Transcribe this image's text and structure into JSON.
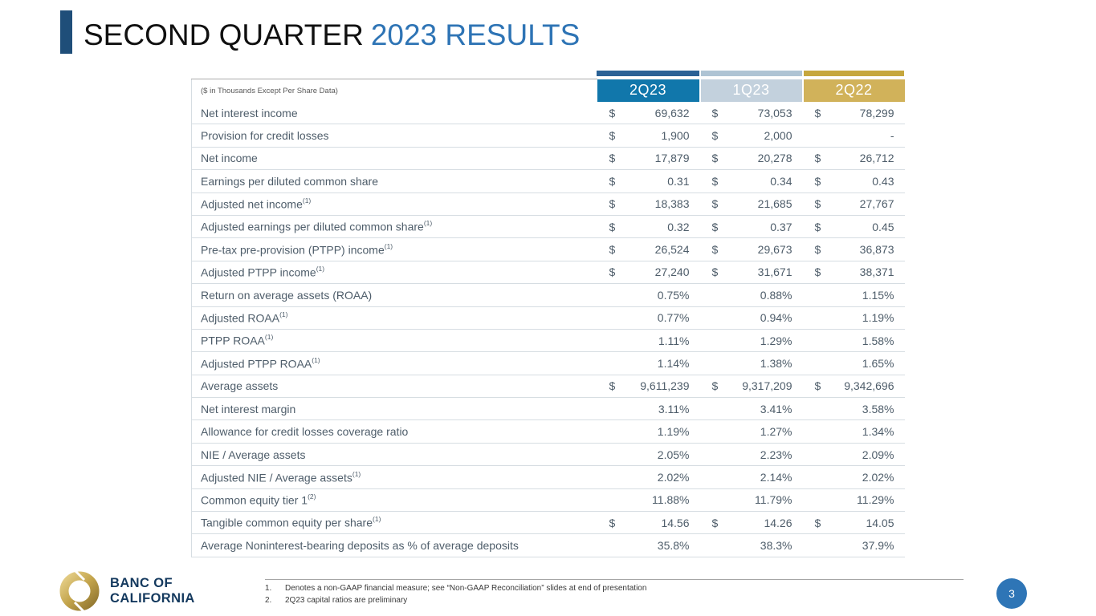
{
  "slide": {
    "title_black": "SECOND QUARTER",
    "title_blue": "2023 RESULTS",
    "page_number": "3"
  },
  "colors": {
    "accent_bar": "#1F4E79",
    "title_blue": "#2E74B5",
    "header_2q23": "#1177AB",
    "header_1q23": "#C3D1DD",
    "header_2q22": "#D1B25A",
    "stripe_2q23": "#2B6296",
    "stripe_1q23": "#AFC4D4",
    "stripe_2q22": "#C6A73E",
    "table_text": "#4E5D6A",
    "page_badge": "#2E75B6",
    "logo_navy": "#14395E",
    "logo_gold": "#C3A44C"
  },
  "table": {
    "caption": "($ in Thousands Except Per Share Data)",
    "columns": [
      "2Q23",
      "1Q23",
      "2Q22"
    ],
    "rows": [
      {
        "label": "Net interest income",
        "sup": "",
        "cells": [
          [
            "$",
            "69,632"
          ],
          [
            "$",
            "73,053"
          ],
          [
            "$",
            "78,299"
          ]
        ]
      },
      {
        "label": "Provision for credit losses",
        "sup": "",
        "cells": [
          [
            "$",
            "1,900"
          ],
          [
            "$",
            "2,000"
          ],
          [
            "",
            "-"
          ]
        ]
      },
      {
        "label": "Net income",
        "sup": "",
        "cells": [
          [
            "$",
            "17,879"
          ],
          [
            "$",
            "20,278"
          ],
          [
            "$",
            "26,712"
          ]
        ]
      },
      {
        "label": "Earnings per diluted common share",
        "sup": "",
        "cells": [
          [
            "$",
            "0.31"
          ],
          [
            "$",
            "0.34"
          ],
          [
            "$",
            "0.43"
          ]
        ]
      },
      {
        "label": "Adjusted net income",
        "sup": "(1)",
        "cells": [
          [
            "$",
            "18,383"
          ],
          [
            "$",
            "21,685"
          ],
          [
            "$",
            "27,767"
          ]
        ]
      },
      {
        "label": "Adjusted earnings per diluted common share",
        "sup": "(1)",
        "cells": [
          [
            "$",
            "0.32"
          ],
          [
            "$",
            "0.37"
          ],
          [
            "$",
            "0.45"
          ]
        ]
      },
      {
        "label": "Pre-tax pre-provision (PTPP) income",
        "sup": "(1)",
        "cells": [
          [
            "$",
            "26,524"
          ],
          [
            "$",
            "29,673"
          ],
          [
            "$",
            "36,873"
          ]
        ]
      },
      {
        "label": "Adjusted PTPP income",
        "sup": "(1)",
        "cells": [
          [
            "$",
            "27,240"
          ],
          [
            "$",
            "31,671"
          ],
          [
            "$",
            "38,371"
          ]
        ]
      },
      {
        "label": "Return on average assets (ROAA)",
        "sup": "",
        "cells": [
          [
            "",
            "0.75%"
          ],
          [
            "",
            "0.88%"
          ],
          [
            "",
            "1.15%"
          ]
        ]
      },
      {
        "label": "Adjusted ROAA",
        "sup": "(1)",
        "cells": [
          [
            "",
            "0.77%"
          ],
          [
            "",
            "0.94%"
          ],
          [
            "",
            "1.19%"
          ]
        ]
      },
      {
        "label": "PTPP ROAA",
        "sup": "(1)",
        "cells": [
          [
            "",
            "1.11%"
          ],
          [
            "",
            "1.29%"
          ],
          [
            "",
            "1.58%"
          ]
        ]
      },
      {
        "label": "Adjusted PTPP ROAA",
        "sup": "(1)",
        "cells": [
          [
            "",
            "1.14%"
          ],
          [
            "",
            "1.38%"
          ],
          [
            "",
            "1.65%"
          ]
        ]
      },
      {
        "label": "Average assets",
        "sup": "",
        "cells": [
          [
            "$",
            "9,611,239"
          ],
          [
            "$",
            "9,317,209"
          ],
          [
            "$",
            "9,342,696"
          ]
        ]
      },
      {
        "label": "Net interest margin",
        "sup": "",
        "cells": [
          [
            "",
            "3.11%"
          ],
          [
            "",
            "3.41%"
          ],
          [
            "",
            "3.58%"
          ]
        ]
      },
      {
        "label": "Allowance for credit losses coverage ratio",
        "sup": "",
        "cells": [
          [
            "",
            "1.19%"
          ],
          [
            "",
            "1.27%"
          ],
          [
            "",
            "1.34%"
          ]
        ]
      },
      {
        "label": "NIE / Average assets",
        "sup": "",
        "cells": [
          [
            "",
            "2.05%"
          ],
          [
            "",
            "2.23%"
          ],
          [
            "",
            "2.09%"
          ]
        ]
      },
      {
        "label": "Adjusted NIE / Average assets",
        "sup": "(1)",
        "cells": [
          [
            "",
            "2.02%"
          ],
          [
            "",
            "2.14%"
          ],
          [
            "",
            "2.02%"
          ]
        ]
      },
      {
        "label": "Common equity tier 1",
        "sup": "(2)",
        "cells": [
          [
            "",
            "11.88%"
          ],
          [
            "",
            "11.79%"
          ],
          [
            "",
            "11.29%"
          ]
        ]
      },
      {
        "label": "Tangible common equity per share",
        "sup": "(1)",
        "cells": [
          [
            "$",
            "14.56"
          ],
          [
            "$",
            "14.26"
          ],
          [
            "$",
            "14.05"
          ]
        ]
      },
      {
        "label": "Average Noninterest-bearing deposits as % of average deposits",
        "sup": "",
        "cells": [
          [
            "",
            "35.8%"
          ],
          [
            "",
            "38.3%"
          ],
          [
            "",
            "37.9%"
          ]
        ]
      }
    ]
  },
  "footnotes": [
    {
      "num": "1.",
      "text": "Denotes a non-GAAP financial measure; see “Non-GAAP Reconciliation” slides at end of presentation"
    },
    {
      "num": "2.",
      "text": "2Q23 capital ratios are preliminary"
    }
  ],
  "logo": {
    "line1": "BANC OF",
    "line2": "CALIFORNIA"
  }
}
